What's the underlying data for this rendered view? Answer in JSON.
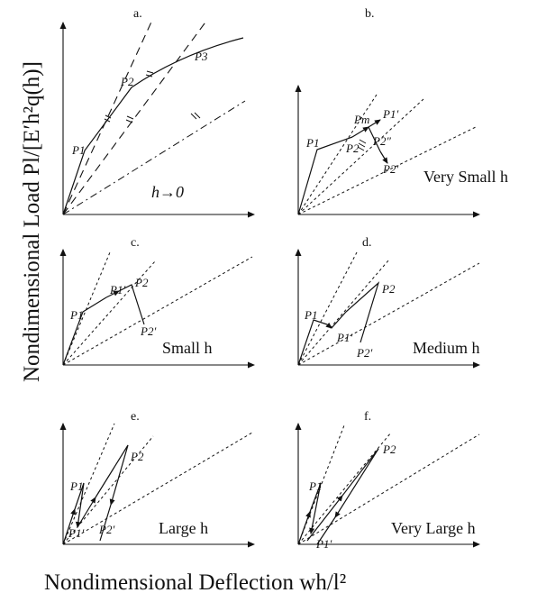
{
  "axes": {
    "y_title": "Nondimensional Load  Pl/[E′h²q(h)]",
    "x_title": "Nondimensional Deflection  wh/l²"
  },
  "panels": [
    {
      "letter": "a.",
      "caption": "h→0",
      "labels": [
        "P1",
        "P2",
        "P3"
      ]
    },
    {
      "letter": "b.",
      "caption": "Very Small h",
      "labels": [
        "P1",
        "P2",
        "Pm",
        "P1′",
        "P2″",
        "P2′"
      ]
    },
    {
      "letter": "c.",
      "caption": "Small h",
      "labels": [
        "P1",
        "P1′",
        "P2",
        "P2′"
      ]
    },
    {
      "letter": "d.",
      "caption": "Medium h",
      "labels": [
        "P1",
        "P1′",
        "P2",
        "P2′"
      ]
    },
    {
      "letter": "e.",
      "caption": "Large h",
      "labels": [
        "P1",
        "P1′",
        "P2",
        "P2′"
      ]
    },
    {
      "letter": "f.",
      "caption": "Very Large h",
      "labels": [
        "P1",
        "P1′",
        "P2"
      ]
    }
  ]
}
